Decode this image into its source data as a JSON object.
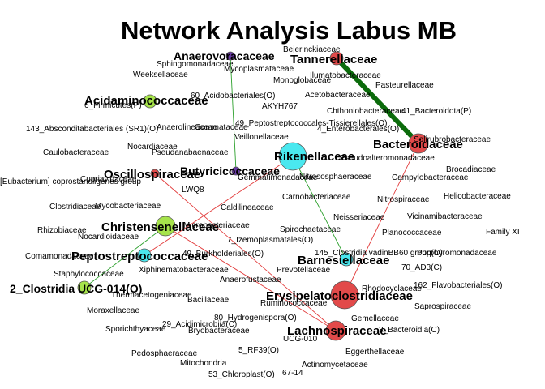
{
  "title": "Network Analysis Labus MB",
  "colors": {
    "red": "#e24a4a",
    "green": "#a6e34b",
    "cyan": "#4ae8ef",
    "purple": "#6a3ba6",
    "edge_pos": "#2ca02c",
    "edge_pos_strong": "#0b6b0b",
    "edge_neg": "#e23b3b",
    "node_stroke": "#555555"
  },
  "nodes": [
    {
      "id": "anaerovoracaceae",
      "label": "Anaerovoracaceae",
      "color": "purple",
      "size": "small",
      "bold": true
    },
    {
      "id": "tannerellaceae",
      "label": "Tannerellaceae",
      "color": "red",
      "size": "medium",
      "bold": true
    },
    {
      "id": "acidaminococcaceae",
      "label": "Acidaminococcaceae",
      "color": "green",
      "size": "medium",
      "bold": true
    },
    {
      "id": "bacteroidaceae",
      "label": "Bacteroidaceae",
      "color": "red",
      "size": "large",
      "bold": true
    },
    {
      "id": "rikenellaceae",
      "label": "Rikenellaceae",
      "color": "cyan",
      "size": "xlarge",
      "bold": true
    },
    {
      "id": "oscillospiraceae",
      "label": "Oscillospiraceae",
      "color": "red",
      "size": "small",
      "bold": true
    },
    {
      "id": "butyricicoccaceae",
      "label": "Butyricicoccaceae",
      "color": "purple",
      "size": "small",
      "bold": true
    },
    {
      "id": "christensenellaceae",
      "label": "Christensenellaceae",
      "color": "green",
      "size": "large",
      "bold": true
    },
    {
      "id": "peptostreptococcaceae",
      "label": "Peptostreptococcaceae",
      "color": "cyan",
      "size": "medium",
      "bold": true
    },
    {
      "id": "barnesiellaceae",
      "label": "Barnesiellaceae",
      "color": "cyan",
      "size": "medium",
      "bold": true
    },
    {
      "id": "clostridia_ucg014",
      "label": "2_Clostridia UCG-014(O)",
      "color": "green",
      "size": "medium",
      "bold": true
    },
    {
      "id": "erysipelatoclostridiaceae",
      "label": "Erysipelatoclostridiaceae",
      "color": "red",
      "size": "xlarge",
      "bold": true
    },
    {
      "id": "lachnospiraceae",
      "label": "Lachnospiraceae",
      "color": "red",
      "size": "large",
      "bold": true
    }
  ],
  "edges": [
    {
      "from": "tannerellaceae",
      "to": "bacteroidaceae",
      "type": "positive",
      "weight": "strong"
    },
    {
      "from": "anaerovoracaceae",
      "to": "butyricicoccaceae",
      "type": "positive",
      "weight": "normal"
    },
    {
      "from": "rikenellaceae",
      "to": "barnesiellaceae",
      "type": "positive",
      "weight": "normal"
    },
    {
      "from": "christensenellaceae",
      "to": "clostridia_ucg014",
      "type": "positive",
      "weight": "normal"
    },
    {
      "from": "bacteroidaceae",
      "to": "erysipelatoclostridiaceae",
      "type": "negative",
      "weight": "normal"
    },
    {
      "from": "oscillospiraceae",
      "to": "lachnospiraceae",
      "type": "negative",
      "weight": "normal"
    },
    {
      "from": "rikenellaceae",
      "to": "peptostreptococcaceae",
      "type": "negative",
      "weight": "normal"
    },
    {
      "from": "christensenellaceae",
      "to": "lachnospiraceae",
      "type": "negative",
      "weight": "normal"
    }
  ],
  "labels": [
    "Bejerinckiaceae",
    "Sphingomonadaceae",
    "Mycoplasmataceae",
    "Weeksellaceae",
    "Ilumatobacteraceae",
    "Pasteurellaceae",
    "Monoglobaceae",
    "60_Acidobacteriales(O)",
    "Acetobacteraceae",
    "6_Firmicutes(P)",
    "AKYH767",
    "Chthoniobacteraceae",
    "41_Bacteroidota(P)",
    "Anaerolineaceae",
    "Gemmataceae",
    "49_Peptostreptococcales-Tissierellales(O)",
    "143_Absconditabacteriales (SR1)(O)",
    "4_Enterobacterales(O)",
    "Veillonellaceae",
    "Solirubrobacteraceae",
    "Nocardiaceae",
    "Caulobacteraceae",
    "Pseudanabaenaceae",
    "Pseudoalteromonadaceae",
    "Brocadiaceae",
    "Gemmatimonadaceae",
    "Nitrososphaeraceae",
    "Campylobacteraceae",
    "[Eubacterium] coprostanoligenes group",
    "Cupriavidaceae",
    "LWQ8",
    "Carnobacteriaceae",
    "Nitrospiraceae",
    "Helicobacteraceae",
    "Clostridiaceae",
    "Mycobacteriaceae",
    "Caldilineaceae",
    "Neisseriaceae",
    "Vicinamibacteraceae",
    "Microbacteriaceae",
    "Rhizobiaceae",
    "Spirochaetaceae",
    "Planococcaceae",
    "Family XI",
    "Nocardioidaceae",
    "7_Izemoplasmatales(O)",
    "Comamonadaceae",
    "49_Burkholderiales(O)",
    "145_Clostridia vadinBB60 group(O)",
    "Porphyromonadaceae",
    "Staphylococcaceae",
    "Xiphinematobacteraceae",
    "Prevotellaceae",
    "70_AD3(C)",
    "Anaerofustaceae",
    "Rhodocyclaceae",
    "162_Flavobacteriales(O)",
    "Thermacetogeniaceae",
    "Bacillaceae",
    "Ruminococcaceae",
    "Saprospiraceae",
    "Moraxellaceae",
    "80_Hydrogenispora(O)",
    "Gemellaceae",
    "29_Acidimicrobiia(C)",
    "Sporichthyaceae",
    "Bryobacteraceae",
    "UCG-010",
    "3_Bacteroidia(C)",
    "5_RF39(O)",
    "Pedosphaeraceae",
    "Eggerthellaceae",
    "Mitochondria",
    "Actinomycetaceae",
    "53_Chloroplast(O)",
    "67-14"
  ]
}
